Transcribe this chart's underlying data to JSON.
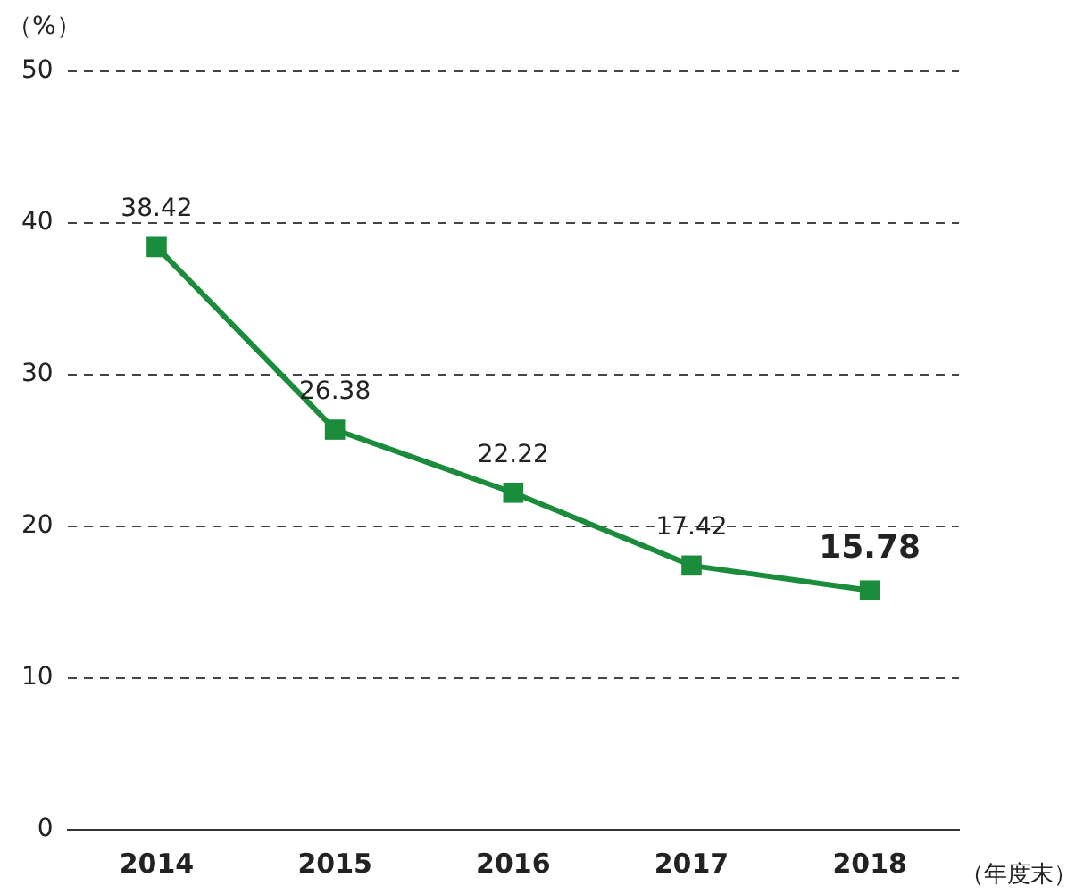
{
  "chart_data": {
    "type": "line",
    "ylabel": "（%）",
    "xlabel": "（年度末）",
    "categories": [
      "2014",
      "2015",
      "2016",
      "2017",
      "2018"
    ],
    "series": [
      {
        "color": "#1a8c3c",
        "values": [
          38.42,
          26.38,
          22.22,
          17.42,
          15.78
        ],
        "value_labels": [
          "38.42",
          "26.38",
          "22.22",
          "17.42",
          "15.78"
        ]
      }
    ],
    "ylim": [
      0,
      50
    ],
    "yticks": [
      0,
      10,
      20,
      30,
      40,
      50
    ],
    "grid": "y",
    "marker": "square",
    "line_style": "solid"
  }
}
